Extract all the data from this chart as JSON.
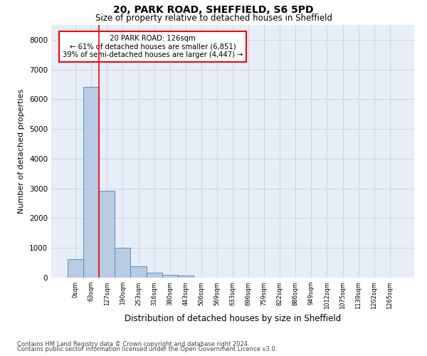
{
  "title1": "20, PARK ROAD, SHEFFIELD, S6 5PD",
  "title2": "Size of property relative to detached houses in Sheffield",
  "xlabel": "Distribution of detached houses by size in Sheffield",
  "ylabel": "Number of detached properties",
  "footnote1": "Contains HM Land Registry data © Crown copyright and database right 2024.",
  "footnote2": "Contains public sector information licensed under the Open Government Licence v3.0.",
  "bar_labels": [
    "0sqm",
    "63sqm",
    "127sqm",
    "190sqm",
    "253sqm",
    "316sqm",
    "380sqm",
    "443sqm",
    "506sqm",
    "569sqm",
    "633sqm",
    "696sqm",
    "759sqm",
    "822sqm",
    "886sqm",
    "949sqm",
    "1012sqm",
    "1075sqm",
    "1139sqm",
    "1202sqm",
    "1265sqm"
  ],
  "bar_values": [
    620,
    6420,
    2920,
    1010,
    380,
    170,
    105,
    75,
    0,
    0,
    0,
    0,
    0,
    0,
    0,
    0,
    0,
    0,
    0,
    0,
    0
  ],
  "bar_color": "#b8cce4",
  "bar_edge_color": "#5a8fc2",
  "property_line_x": 1.5,
  "property_label": "20 PARK ROAD: 126sqm",
  "annotation_line1": "← 61% of detached houses are smaller (6,851)",
  "annotation_line2": "39% of semi-detached houses are larger (4,447) →",
  "ylim": [
    0,
    8500
  ],
  "yticks": [
    0,
    1000,
    2000,
    3000,
    4000,
    5000,
    6000,
    7000,
    8000
  ],
  "grid_color": "#ccd5e5",
  "background_color": "#e8eef8"
}
